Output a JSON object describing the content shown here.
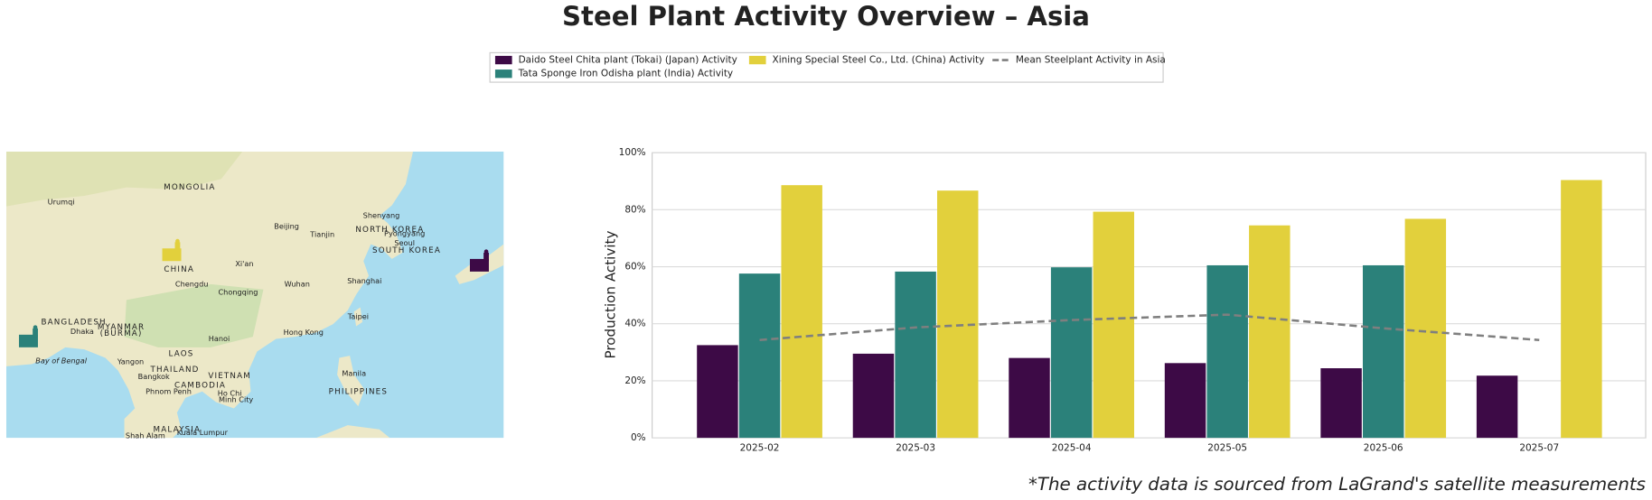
{
  "chart_data": {
    "type": "bar",
    "title": "Steel Plant Activity Overview – Asia",
    "ylabel": "Production Activity",
    "annotation": "*The activity data is sourced from LaGrand's satellite measurements",
    "categories": [
      "2025-02",
      "2025-03",
      "2025-04",
      "2025-05",
      "2025-06",
      "2025-07"
    ],
    "series": [
      {
        "name": "Daido Steel Chita plant (Tokai) (Japan) Activity",
        "color": "#3d0a46",
        "values": [
          32.5,
          29.5,
          28,
          26.2,
          24.4,
          21.8
        ]
      },
      {
        "name": "Tata Sponge Iron Odisha plant (India) Activity",
        "color": "#2b817a",
        "values": [
          57.6,
          58.3,
          59.8,
          60.5,
          60.5,
          null
        ]
      },
      {
        "name": "Xining Special Steel Co., Ltd. (China) Activity",
        "color": "#e2d03c",
        "values": [
          88.6,
          86.7,
          79.3,
          74.5,
          76.8,
          90.4
        ]
      },
      {
        "name": "Mean Steelplant Activity in Asia",
        "color": "#7f7f7f",
        "type": "line",
        "linestyle": "dashed",
        "values": [
          34.3,
          38.7,
          41.3,
          43.2,
          38.4,
          34.3
        ]
      }
    ],
    "ylim": [
      0,
      100
    ],
    "yticks": [
      {
        "value": 0,
        "label": "0%"
      },
      {
        "value": 20,
        "label": "20%"
      },
      {
        "value": 40,
        "label": "40%"
      },
      {
        "value": 60,
        "label": "60%"
      },
      {
        "value": 80,
        "label": "80%"
      },
      {
        "value": 100,
        "label": "100%"
      }
    ],
    "grid": true,
    "legend": "top"
  },
  "map": {
    "labels": [
      "MONGOLIA",
      "Urumqi",
      "Beijing",
      "Tianjin",
      "Shenyang",
      "NORTH KOREA",
      "Pyongyang",
      "Seoul",
      "SOUTH KOREA",
      "CHINA",
      "Xi'an",
      "Chengdu",
      "Chongqing",
      "Wuhan",
      "Shanghai",
      "Taipei",
      "Hong Kong",
      "Hanoi",
      "BANGLADESH",
      "Dhaka",
      "MYANMAR",
      "(BURMA)",
      "Bay of Bengal",
      "Yangon",
      "LAOS",
      "THAILAND",
      "VIETNAM",
      "Bangkok",
      "CAMBODIA",
      "Phnom Penh",
      "Ho Chi",
      "Minh City",
      "Manila",
      "PHILIPPINES",
      "MALAYSIA",
      "Shah Alam",
      "Kuala Lumpur"
    ]
  }
}
